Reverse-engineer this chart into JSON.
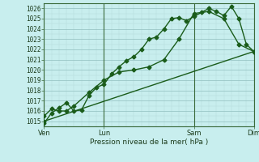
{
  "bg_color": "#c8eeee",
  "grid_major_color": "#90bebe",
  "grid_minor_color": "#b0d8d8",
  "line_color": "#1a5c1a",
  "vline_color": "#3a6a3a",
  "ylabel": "Pression niveau de la mer( hPa )",
  "ylim": [
    1014.5,
    1026.5
  ],
  "yticks": [
    1015,
    1016,
    1017,
    1018,
    1019,
    1020,
    1021,
    1022,
    1023,
    1024,
    1025,
    1026
  ],
  "xtick_labels": [
    "Ven",
    "Lun",
    "Sam",
    "Dim"
  ],
  "xtick_pos": [
    0,
    4,
    10,
    14
  ],
  "xlim": [
    0,
    14
  ],
  "line1_x": [
    0,
    0.5,
    1,
    1.5,
    2,
    2.5,
    3,
    3.5,
    4,
    4.5,
    5,
    5.5,
    6,
    6.5,
    7,
    7.5,
    8,
    8.5,
    9,
    9.5,
    10,
    10.5,
    11,
    11.5,
    12,
    12.5,
    13,
    13.5,
    14
  ],
  "line1_y": [
    1014.8,
    1015.8,
    1016.3,
    1016.8,
    1016.0,
    1016.1,
    1017.5,
    1018.3,
    1018.6,
    1019.6,
    1020.3,
    1020.9,
    1021.3,
    1022.0,
    1023.0,
    1023.2,
    1024.0,
    1025.0,
    1025.1,
    1024.8,
    1025.2,
    1025.6,
    1026.0,
    1025.7,
    1025.3,
    1026.2,
    1025.0,
    1022.5,
    1021.8
  ],
  "line2_x": [
    0,
    0.5,
    1,
    1.5,
    2,
    3,
    4,
    5,
    6,
    7,
    8,
    9,
    10,
    11,
    12,
    13,
    14
  ],
  "line2_y": [
    1015.5,
    1016.2,
    1016.0,
    1016.0,
    1016.5,
    1017.8,
    1019.0,
    1019.8,
    1020.0,
    1020.3,
    1021.0,
    1023.0,
    1025.5,
    1025.7,
    1025.0,
    1022.5,
    1021.8
  ],
  "line3_x": [
    0,
    14
  ],
  "line3_y": [
    1015.0,
    1021.8
  ],
  "vline_x": [
    0,
    4,
    10,
    14
  ],
  "marker_size": 2.5,
  "linewidth": 1.0,
  "fontsize_ytick": 5.5,
  "fontsize_xtick": 6.0,
  "fontsize_xlabel": 6.5
}
